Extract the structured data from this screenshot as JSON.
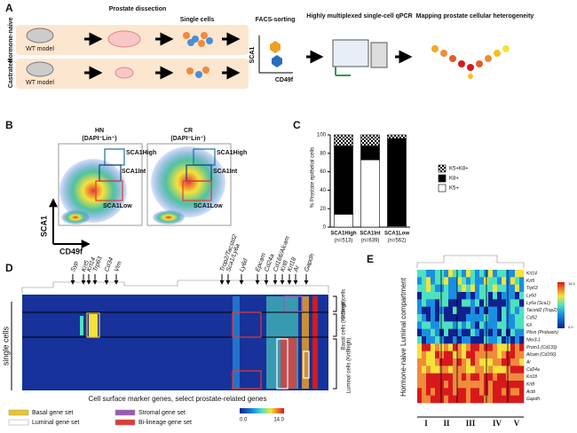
{
  "panel_a": {
    "label": "A",
    "rows": [
      "Hormone-naive",
      "Castrated"
    ],
    "model": [
      "WT model",
      "WT model"
    ],
    "steps": [
      "Prostate dissection",
      "Single cells",
      "FACS-sorting",
      "Highly multiplexed single-cell qPCR",
      "Mapping prostate cellular heterogeneity"
    ],
    "y_axis": "SCA1",
    "x_axis": "CD49f"
  },
  "panel_b": {
    "label": "B",
    "plots": [
      {
        "title": "HN",
        "subtitle": "(DAPI⁻Lin⁻)"
      },
      {
        "title": "CR",
        "subtitle": "(DAPI⁻Lin⁻)"
      }
    ],
    "gates": [
      "SCA1High",
      "SCA1Int",
      "SCA1Low"
    ],
    "y_axis": "SCA1",
    "x_axis": "CD49f"
  },
  "chart_data": {
    "type": "stacked_bar",
    "label": "C",
    "ylabel": "% Prostate epithelial cells",
    "categories": [
      "SCA1High",
      "SCA1Int",
      "SCA1Low"
    ],
    "n_labels": [
      "(n=513)",
      "(n=639)",
      "(n=562)"
    ],
    "series": [
      {
        "name": "K5+",
        "color": "#ffffff",
        "values": [
          14,
          73,
          1
        ]
      },
      {
        "name": "K8+",
        "color": "#000000",
        "values": [
          74,
          15,
          95
        ]
      },
      {
        "name": "K5+K8+",
        "color": "#000000",
        "pattern": "checkerboard",
        "values": [
          12,
          12,
          4
        ]
      }
    ],
    "ylim": [
      0,
      100
    ],
    "yticks": [
      0,
      20,
      40,
      60,
      80,
      100
    ],
    "legend": "right"
  },
  "panel_d": {
    "label": "D",
    "genes": [
      "Syp",
      "Krt5",
      "Krt14",
      "Trp63",
      "Cd34",
      "Vim",
      "Trop2/Tacstd2",
      "Sca1/Ly6a",
      "Ly6d",
      "Epcam",
      "Cd24a",
      "Cd166/Alcam",
      "Krt8",
      "Krt18",
      "Ar",
      "Gapdh"
    ],
    "groups": [
      "Stromal cells",
      "Basal cells (Krt5high)",
      "Luminal cells (Krt8high)"
    ],
    "rows_label": "single cells",
    "x_label": "Cell surface marker genes, select prostate-related genes",
    "scale": [
      "0.0",
      "14.0"
    ],
    "legend": [
      {
        "name": "Basal gene set",
        "color": "#e8c52a"
      },
      {
        "name": "Stromal gene set",
        "color": "#9b59b6"
      },
      {
        "name": "Luminal gene set",
        "color": "#ffffff"
      },
      {
        "name": "Bi-lineage gene set",
        "color": "#e53935"
      }
    ]
  },
  "panel_e": {
    "label": "E",
    "y_label": "Hormone-naive Luminal compartment",
    "genes": [
      "Krt14",
      "Krt5",
      "Trp63",
      "Ly6d",
      "Ly6a (Sca1)",
      "Tacstd2 (Trop2)",
      "Cd52",
      "Kit",
      "Pbsn (Probasin)",
      "Nkx3-1",
      "Prom1 (Cd133)",
      "Alcam (Cd166)",
      "Ar",
      "Cd24a",
      "Krt18",
      "Krt8",
      "Actb",
      "Gapdh"
    ],
    "clusters": [
      "I",
      "II",
      "III",
      "IV",
      "V"
    ],
    "scale": [
      "0.0",
      "14.0"
    ]
  }
}
